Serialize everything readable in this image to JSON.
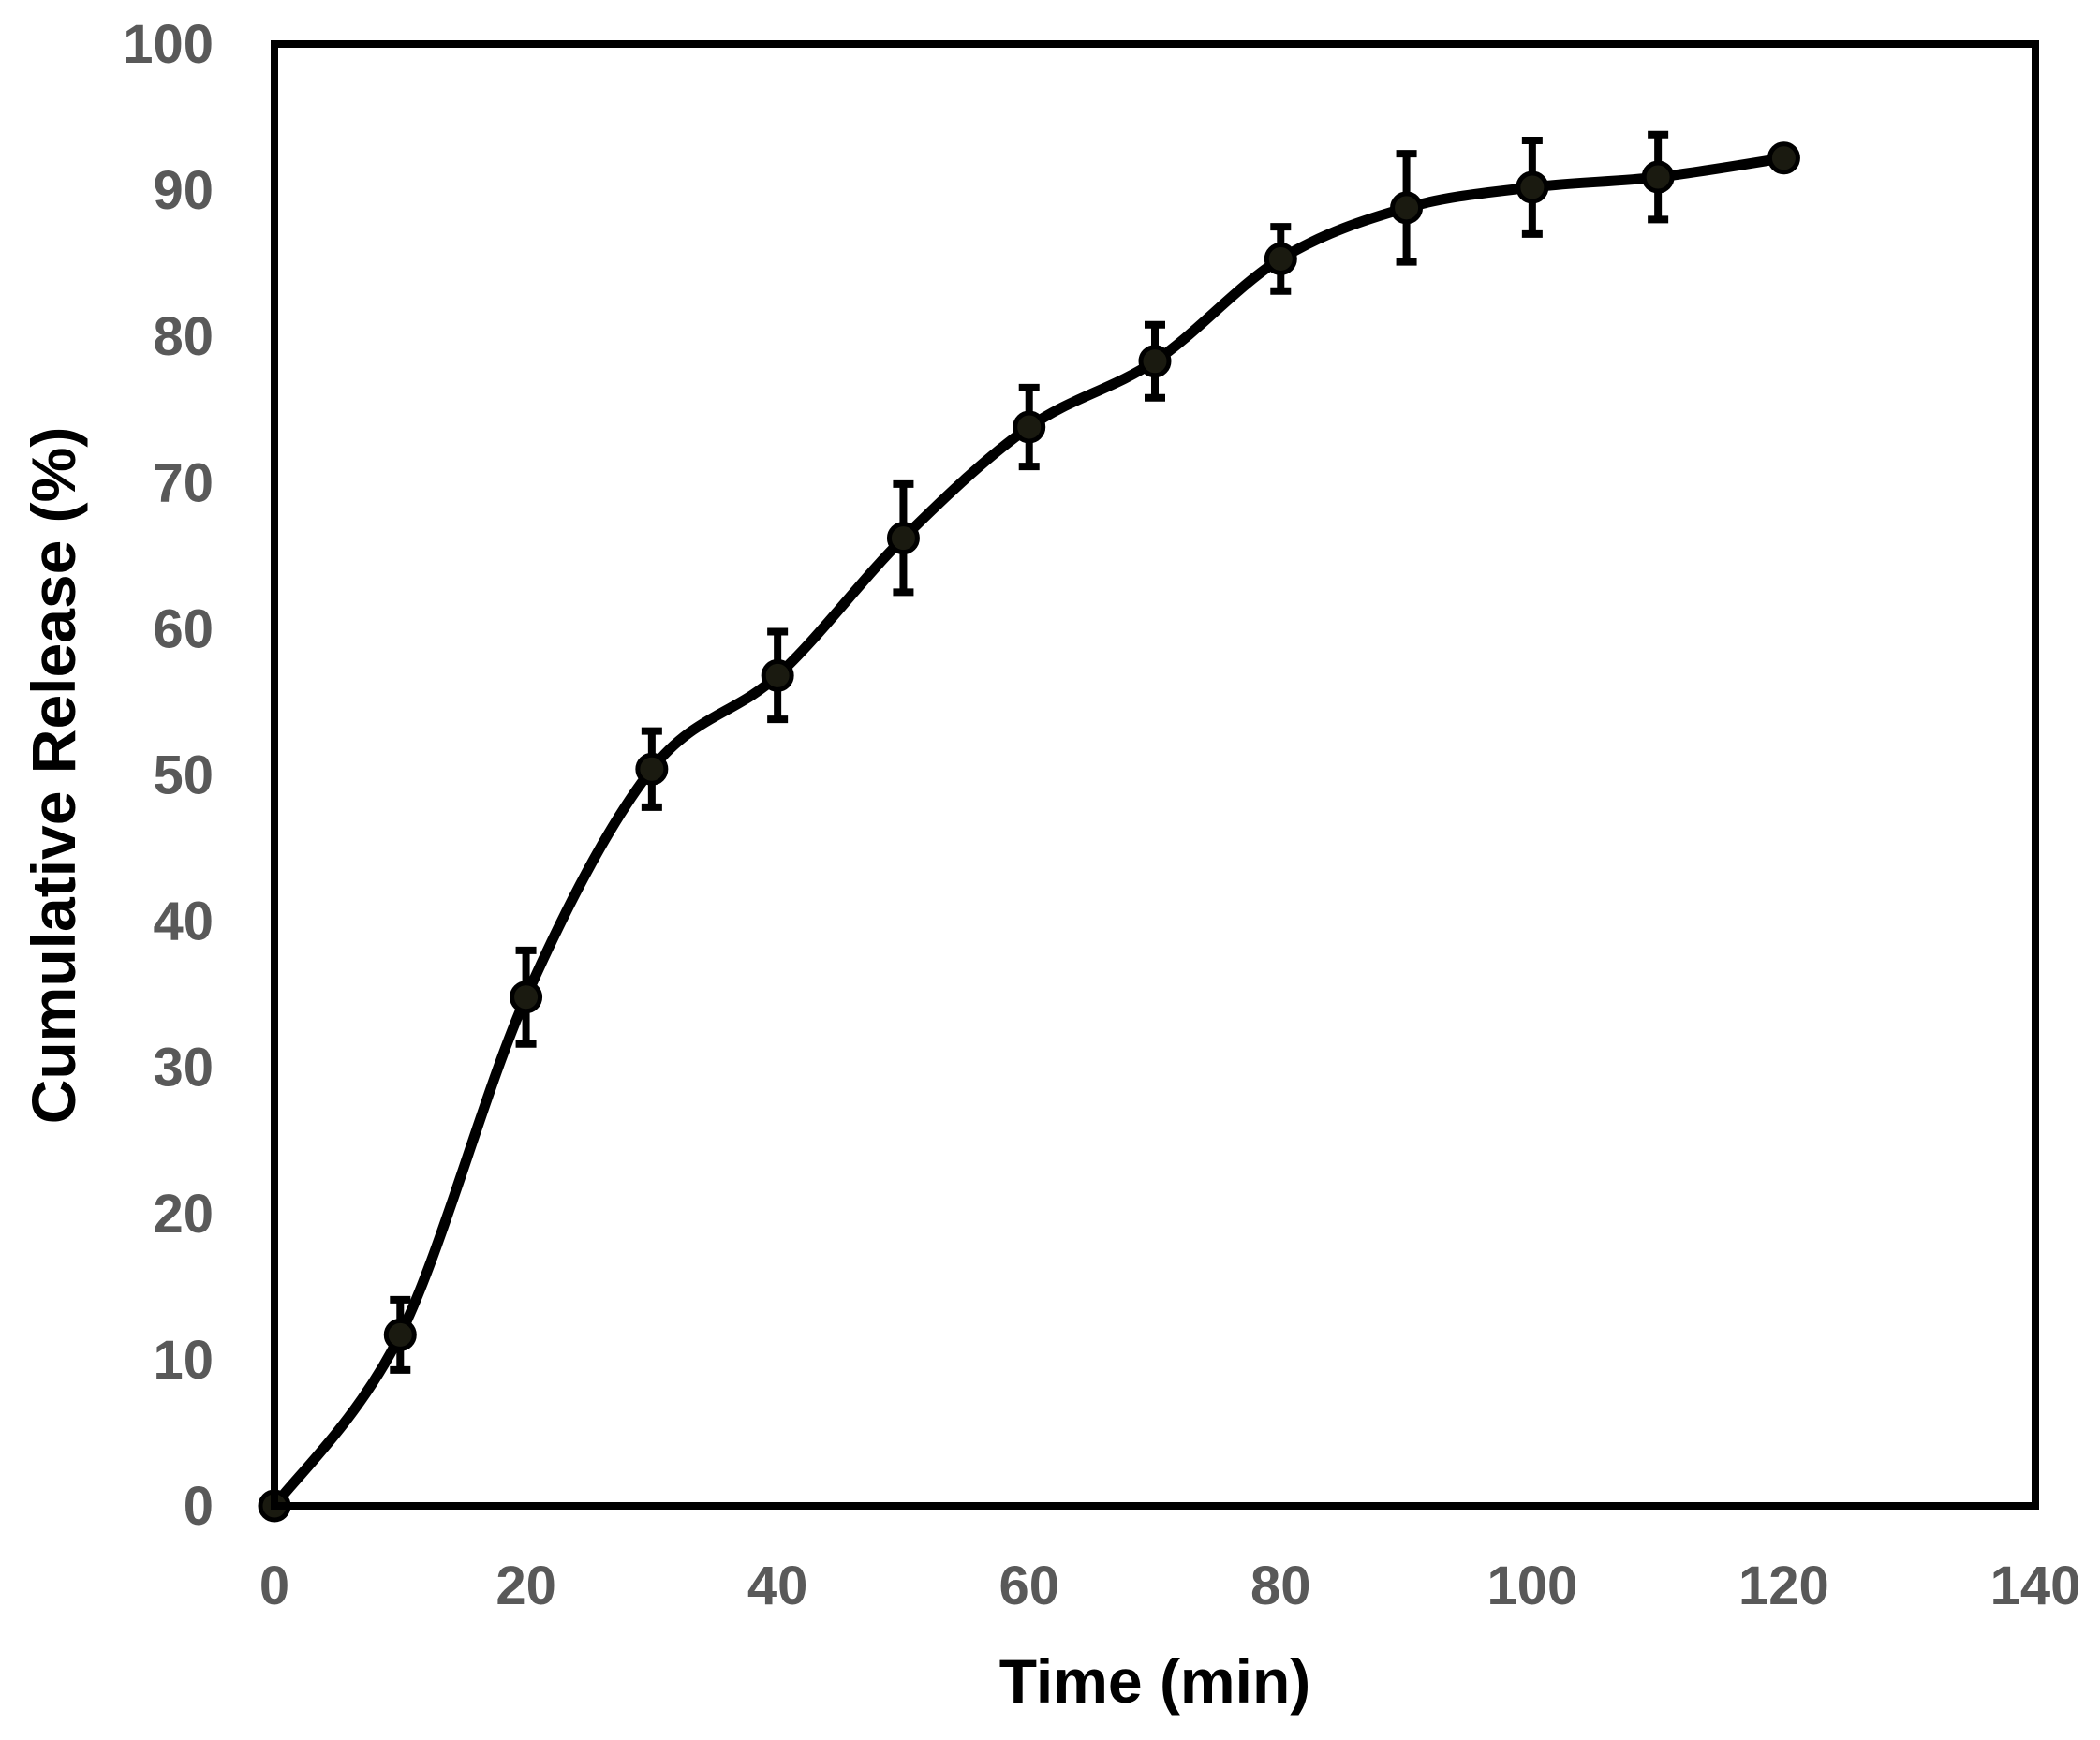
{
  "chart_data": {
    "type": "line",
    "title": "",
    "xlabel": "Time (min)",
    "ylabel": "Cumulative Release (%)",
    "xlim": [
      0,
      140
    ],
    "ylim": [
      0,
      100
    ],
    "xticks": [
      0,
      20,
      40,
      60,
      80,
      100,
      120,
      140
    ],
    "yticks": [
      0,
      10,
      20,
      30,
      40,
      50,
      60,
      70,
      80,
      90,
      100
    ],
    "grid": false,
    "smoothed": true,
    "series": [
      {
        "name": "Cumulative Release",
        "color": "#000000",
        "x": [
          0,
          10,
          20,
          30,
          40,
          50,
          60,
          70,
          80,
          90,
          100,
          110,
          120
        ],
        "y": [
          0,
          11.7,
          34.8,
          50.4,
          56.8,
          66.2,
          73.8,
          78.3,
          85.3,
          88.8,
          90.2,
          90.9,
          92.2
        ],
        "error": [
          0,
          2.4,
          3.2,
          2.6,
          3.0,
          3.7,
          2.7,
          2.5,
          2.2,
          3.7,
          3.2,
          2.9,
          0
        ]
      }
    ]
  }
}
